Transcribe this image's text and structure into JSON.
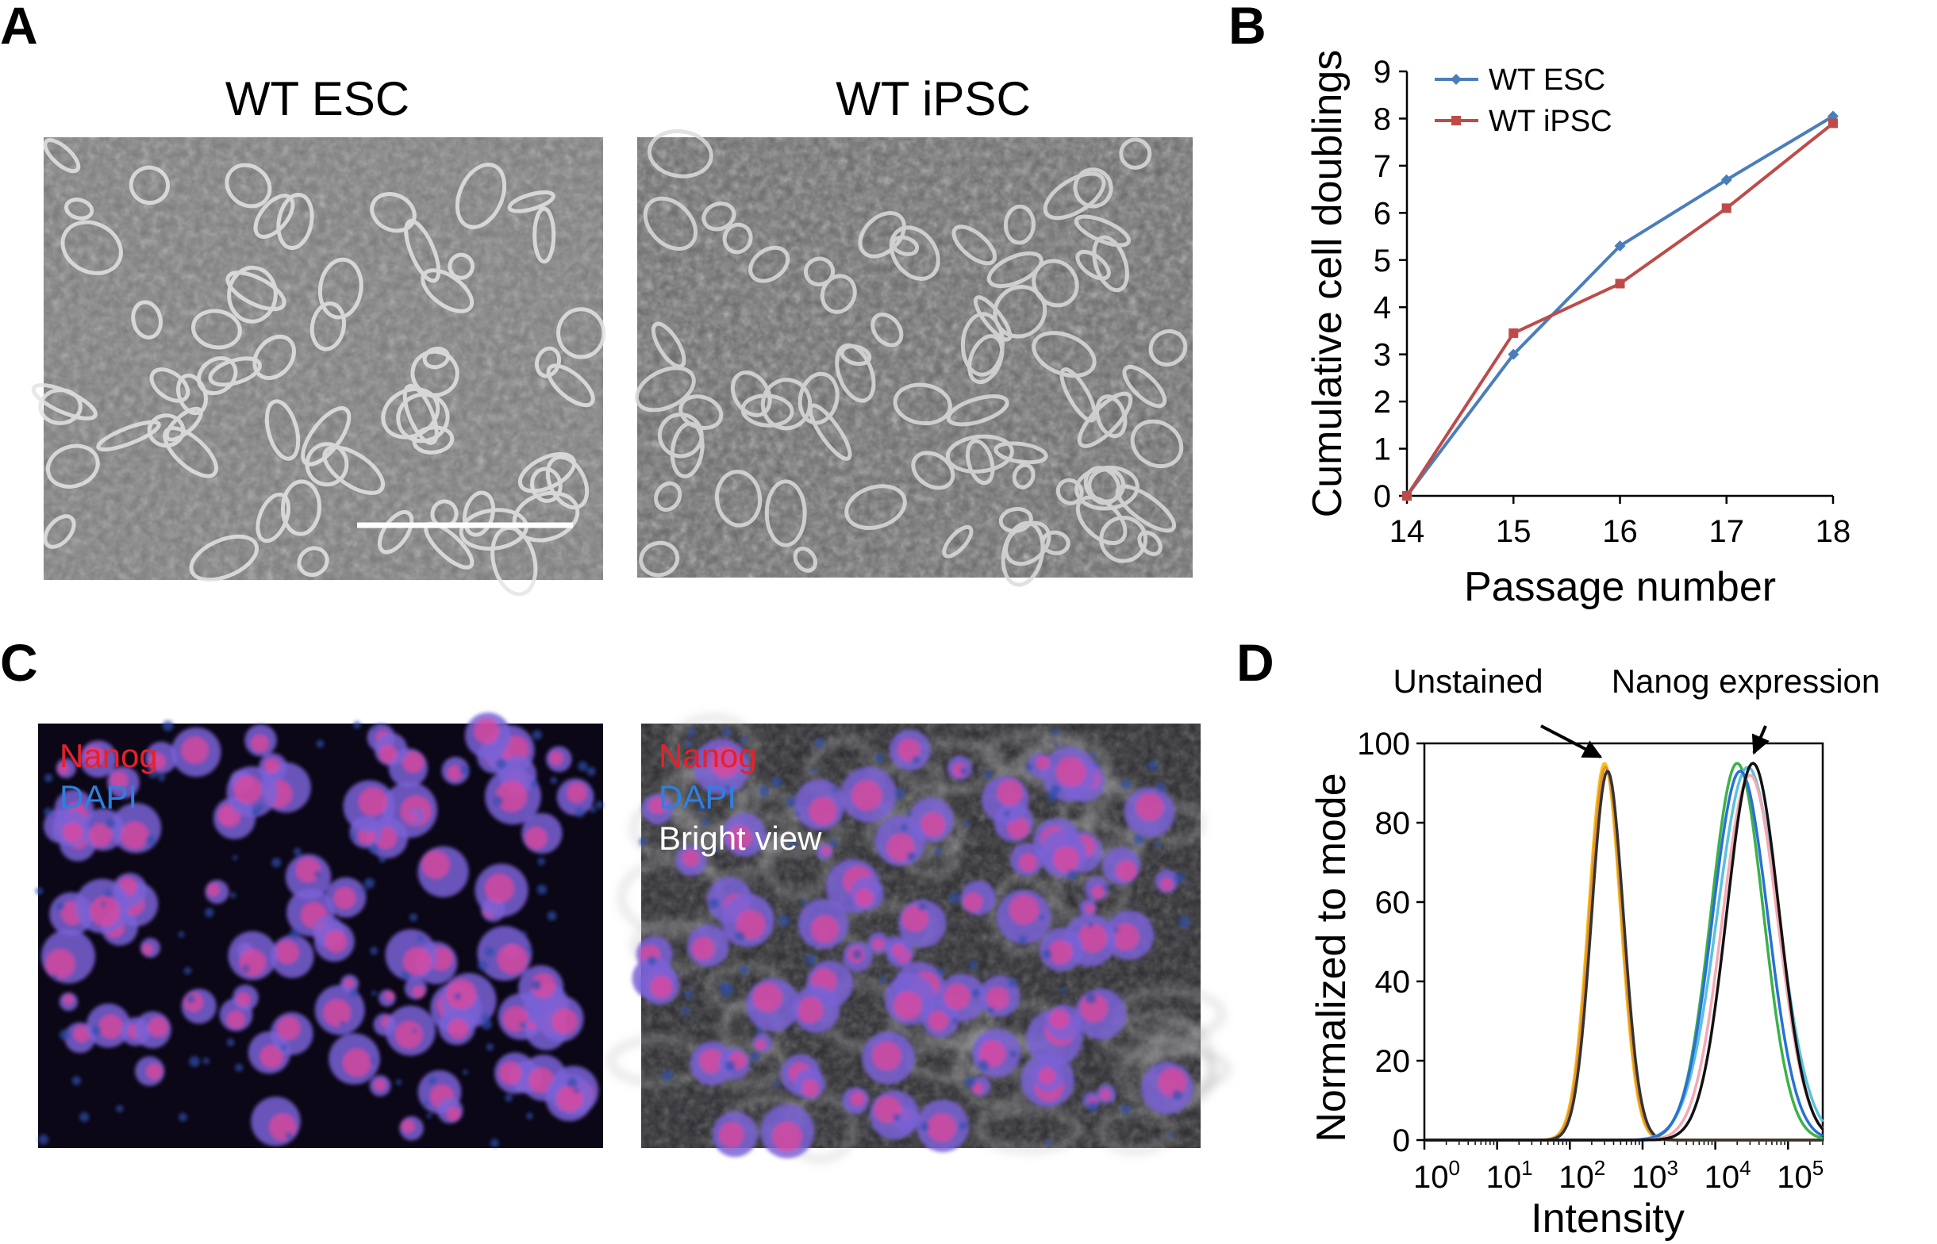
{
  "panels": {
    "A": {
      "letter": "A",
      "images": [
        {
          "title": "WT ESC"
        },
        {
          "title": "WT iPSC"
        }
      ]
    },
    "B": {
      "letter": "B"
    },
    "C": {
      "letter": "C",
      "images": [
        {
          "labels": [
            {
              "text": "Nanog",
              "color": "#e8202a"
            },
            {
              "text": "DAPI",
              "color": "#2f7fe0"
            }
          ]
        },
        {
          "labels": [
            {
              "text": "Nanog",
              "color": "#e8202a"
            },
            {
              "text": "DAPI",
              "color": "#2f7fe0"
            },
            {
              "text": "Bright view",
              "color": "#ffffff"
            }
          ]
        }
      ]
    },
    "D": {
      "letter": "D"
    }
  },
  "chart_data": [
    {
      "panel": "B",
      "type": "line",
      "xlabel": "Passage number",
      "ylabel": "Cumulative cell doublings",
      "x": [
        14,
        15,
        16,
        17,
        18
      ],
      "xlim": [
        14,
        18
      ],
      "ylim": [
        0,
        9
      ],
      "x_ticks": [
        "14",
        "15",
        "16",
        "17",
        "18"
      ],
      "y_ticks": [
        "0",
        "1",
        "2",
        "3",
        "4",
        "5",
        "6",
        "7",
        "8",
        "9"
      ],
      "legend_position": "top-left",
      "series": [
        {
          "name": "WT ESC",
          "color": "#4a7ebb",
          "marker": "diamond",
          "values": [
            0,
            3.0,
            5.3,
            6.7,
            8.05
          ]
        },
        {
          "name": "WT iPSC",
          "color": "#be4b48",
          "marker": "square",
          "values": [
            0,
            3.45,
            4.5,
            6.1,
            7.9
          ]
        }
      ]
    },
    {
      "panel": "D",
      "type": "line",
      "xlabel": "Intensity",
      "ylabel": "Normalized to mode",
      "x_scale": "log",
      "xlim": [
        1,
        300000
      ],
      "ylim": [
        0,
        100
      ],
      "x_ticks": [
        {
          "base": "10",
          "exp": "0"
        },
        {
          "base": "10",
          "exp": "1"
        },
        {
          "base": "10",
          "exp": "2"
        },
        {
          "base": "10",
          "exp": "3"
        },
        {
          "base": "10",
          "exp": "4"
        },
        {
          "base": "10",
          "exp": "5"
        }
      ],
      "y_ticks": [
        "0",
        "20",
        "40",
        "60",
        "80",
        "100"
      ],
      "annotations": [
        {
          "text": "Unstained",
          "points_to_x": 300,
          "points_to_y": 95
        },
        {
          "text": "Nanog expression",
          "points_to_x": 30000,
          "points_to_y": 96
        }
      ],
      "series": [
        {
          "group": "unstained",
          "color": "#f3c21b",
          "peak_x": 300,
          "peak_y": 95,
          "width": 0.22
        },
        {
          "group": "unstained",
          "color": "#e8902e",
          "peak_x": 310,
          "peak_y": 94,
          "width": 0.22
        },
        {
          "group": "unstained",
          "color": "#333333",
          "peak_x": 330,
          "peak_y": 93,
          "width": 0.22
        },
        {
          "group": "stained",
          "color": "#3cb14a",
          "peak_x": 20000,
          "peak_y": 95,
          "width": 0.36
        },
        {
          "group": "stained",
          "color": "#5bc0de",
          "peak_x": 28000,
          "peak_y": 94,
          "width": 0.42
        },
        {
          "group": "stained",
          "color": "#2a6fd6",
          "peak_x": 22000,
          "peak_y": 93,
          "width": 0.38
        },
        {
          "group": "stained",
          "color": "#f4a8b4",
          "peak_x": 30000,
          "peak_y": 92,
          "width": 0.38
        },
        {
          "group": "stained",
          "color": "#111111",
          "peak_x": 33000,
          "peak_y": 95,
          "width": 0.36
        }
      ]
    }
  ]
}
